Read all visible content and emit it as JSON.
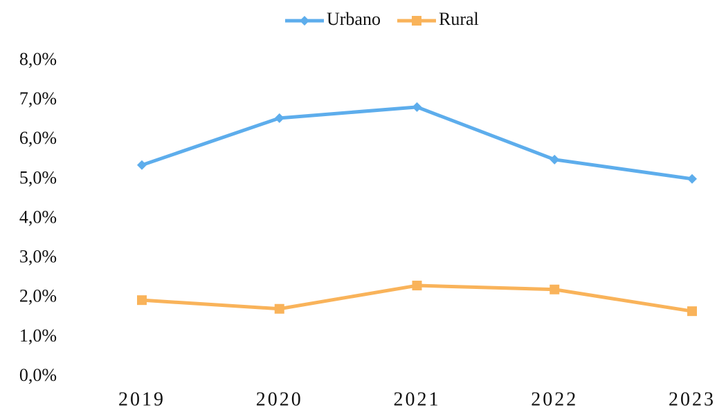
{
  "chart_data": {
    "type": "line",
    "categories": [
      "2019",
      "2020",
      "2021",
      "2022",
      "2023"
    ],
    "series": [
      {
        "name": "Urbano",
        "color": "#5dadec",
        "marker": "diamond",
        "values": [
          5.36,
          6.55,
          6.83,
          5.5,
          5.01
        ]
      },
      {
        "name": "Rural",
        "color": "#f9b35a",
        "marker": "square",
        "values": [
          1.94,
          1.72,
          2.31,
          2.21,
          1.66
        ]
      }
    ],
    "ylim": [
      0,
      8
    ],
    "yticks": [
      {
        "value": 0,
        "label": "0,0%"
      },
      {
        "value": 1,
        "label": "1,0%"
      },
      {
        "value": 2,
        "label": "2,0%"
      },
      {
        "value": 3,
        "label": "3,0%"
      },
      {
        "value": 4,
        "label": "4,0%"
      },
      {
        "value": 5,
        "label": "5,0%"
      },
      {
        "value": 6,
        "label": "6,0%"
      },
      {
        "value": 7,
        "label": "7,0%"
      },
      {
        "value": 8,
        "label": "8,0%"
      }
    ],
    "grid": false,
    "legend": "top"
  }
}
